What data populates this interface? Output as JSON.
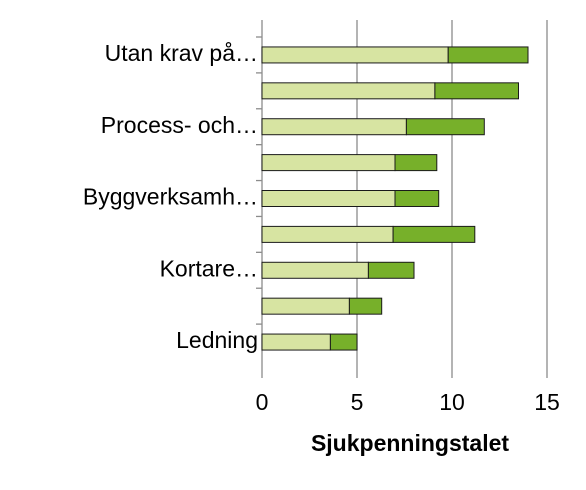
{
  "chart_data": {
    "type": "stacked_barh",
    "x_label": "Sjukpenningstalet",
    "categories": [
      "Utan krav på…",
      null,
      "Process- och…",
      null,
      "Byggverksamh…",
      null,
      "Kortare…",
      null,
      "Ledning"
    ],
    "series": [
      {
        "color": "#d7e4a2",
        "values": [
          9.8,
          9.1,
          7.6,
          7.0,
          7.0,
          6.9,
          5.6,
          4.6,
          3.6
        ]
      },
      {
        "color": "#77b02a",
        "values": [
          4.2,
          4.4,
          4.1,
          2.2,
          2.3,
          4.3,
          2.4,
          1.7,
          1.4
        ]
      }
    ],
    "xlim": [
      0,
      15
    ],
    "xticks": [
      0,
      5,
      10,
      15
    ],
    "grid": true
  }
}
